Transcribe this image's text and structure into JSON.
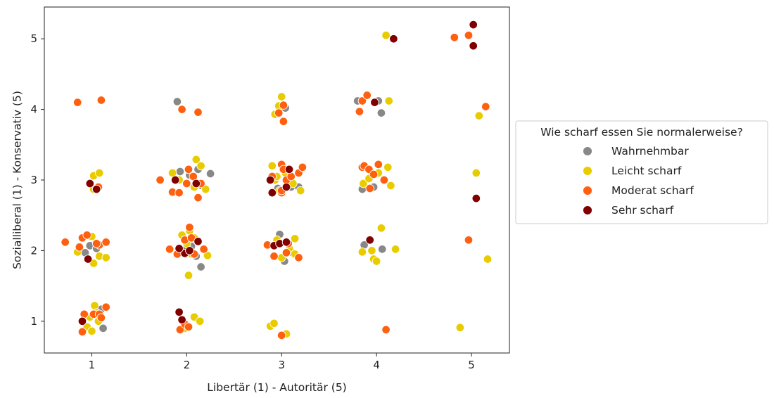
{
  "chart_data": {
    "type": "scatter",
    "xlabel": "Libertär (1) - Autoritär (5)",
    "ylabel": "Sozialliberal (1) - Konservativ (5)",
    "xlim": [
      0.5,
      5.4
    ],
    "ylim": [
      0.55,
      5.45
    ],
    "x_ticks": [
      "1",
      "2",
      "3",
      "4",
      "5"
    ],
    "y_ticks": [
      "1",
      "2",
      "3",
      "4",
      "5"
    ],
    "grid": false,
    "legend": {
      "title": "Wie scharf essen Sie normalerweise?",
      "placement": "right-outside",
      "entries": [
        "Wahrnehmbar",
        "Leicht scharf",
        "Moderat scharf",
        "Sehr scharf"
      ]
    },
    "series": [
      {
        "name": "Wahrnehmbar",
        "color": "#888888",
        "points": [
          [
            0.93,
            1.97
          ],
          [
            0.98,
            2.07
          ],
          [
            1.05,
            2.03
          ],
          [
            1.1,
            1.17
          ],
          [
            1.12,
            0.9
          ],
          [
            1.9,
            4.11
          ],
          [
            1.93,
            3.12
          ],
          [
            2.03,
            3.07
          ],
          [
            1.98,
            2.01
          ],
          [
            2.05,
            2.06
          ],
          [
            2.12,
            3.15
          ],
          [
            2.16,
            2.92
          ],
          [
            2.25,
            3.09
          ],
          [
            2.15,
            1.77
          ],
          [
            2.1,
            1.92
          ],
          [
            2.96,
            2.88
          ],
          [
            3.1,
            2.9
          ],
          [
            3.04,
            4.02
          ],
          [
            2.98,
            2.23
          ],
          [
            3.03,
            1.85
          ],
          [
            3.1,
            1.98
          ],
          [
            3.18,
            2.9
          ],
          [
            3.8,
            4.12
          ],
          [
            3.85,
            2.87
          ],
          [
            3.87,
            2.08
          ],
          [
            3.97,
            2.9
          ],
          [
            4.02,
            4.12
          ],
          [
            4.05,
            3.95
          ],
          [
            4.06,
            2.02
          ]
        ]
      },
      {
        "name": "Leicht scharf",
        "color": "#e8cc00",
        "points": [
          [
            0.85,
            1.98
          ],
          [
            1.02,
            3.06
          ],
          [
            1.08,
            3.1
          ],
          [
            1.02,
            2.87
          ],
          [
            1.0,
            2.2
          ],
          [
            1.02,
            1.82
          ],
          [
            1.08,
            1.92
          ],
          [
            1.15,
            1.9
          ],
          [
            0.9,
            1.0
          ],
          [
            0.95,
            0.92
          ],
          [
            1.0,
            0.86
          ],
          [
            1.03,
            1.22
          ],
          [
            1.07,
            1.0
          ],
          [
            1.05,
            1.12
          ],
          [
            0.98,
            1.06
          ],
          [
            1.85,
            3.1
          ],
          [
            1.92,
            3.0
          ],
          [
            2.08,
            2.9
          ],
          [
            2.1,
            3.29
          ],
          [
            2.15,
            3.2
          ],
          [
            2.2,
            2.87
          ],
          [
            1.95,
            2.22
          ],
          [
            2.0,
            2.1
          ],
          [
            2.05,
            1.95
          ],
          [
            2.08,
            2.18
          ],
          [
            2.03,
            2.28
          ],
          [
            2.22,
            1.93
          ],
          [
            2.02,
            1.65
          ],
          [
            2.08,
            1.06
          ],
          [
            2.14,
            1.0
          ],
          [
            1.98,
            0.9
          ],
          [
            2.9,
            3.2
          ],
          [
            2.93,
            3.0
          ],
          [
            2.98,
            2.85
          ],
          [
            3.04,
            3.1
          ],
          [
            3.12,
            2.95
          ],
          [
            3.2,
            2.85
          ],
          [
            2.95,
            3.05
          ],
          [
            2.93,
            3.93
          ],
          [
            2.97,
            4.05
          ],
          [
            3.0,
            4.18
          ],
          [
            2.95,
            2.15
          ],
          [
            3.08,
            2.03
          ],
          [
            3.14,
            1.95
          ],
          [
            3.14,
            2.17
          ],
          [
            3.0,
            1.9
          ],
          [
            2.88,
            0.93
          ],
          [
            2.92,
            0.97
          ],
          [
            3.05,
            0.82
          ],
          [
            3.86,
            2.95
          ],
          [
            3.92,
            3.02
          ],
          [
            4.02,
            3.1
          ],
          [
            4.12,
            3.18
          ],
          [
            4.15,
            2.92
          ],
          [
            3.85,
            1.98
          ],
          [
            3.95,
            2.0
          ],
          [
            3.97,
            1.88
          ],
          [
            4.0,
            1.85
          ],
          [
            4.05,
            2.32
          ],
          [
            4.2,
            2.02
          ],
          [
            4.1,
            5.05
          ],
          [
            4.13,
            4.12
          ],
          [
            4.88,
            0.91
          ],
          [
            5.05,
            3.1
          ],
          [
            5.08,
            3.91
          ],
          [
            5.17,
            1.88
          ]
        ]
      },
      {
        "name": "Moderat scharf",
        "color": "#ff6010",
        "points": [
          [
            0.85,
            4.1
          ],
          [
            1.1,
            4.13
          ],
          [
            0.72,
            2.12
          ],
          [
            0.87,
            2.05
          ],
          [
            0.9,
            2.18
          ],
          [
            0.95,
            2.22
          ],
          [
            1.08,
            2.08
          ],
          [
            1.15,
            2.12
          ],
          [
            1.05,
            2.1
          ],
          [
            1.07,
            2.9
          ],
          [
            0.92,
            1.1
          ],
          [
            1.02,
            1.1
          ],
          [
            1.08,
            1.1
          ],
          [
            1.1,
            1.05
          ],
          [
            1.15,
            1.2
          ],
          [
            0.9,
            0.85
          ],
          [
            1.95,
            4.0
          ],
          [
            2.12,
            3.96
          ],
          [
            1.72,
            3.0
          ],
          [
            1.85,
            2.83
          ],
          [
            1.92,
            2.82
          ],
          [
            2.0,
            2.95
          ],
          [
            2.02,
            3.15
          ],
          [
            2.07,
            3.05
          ],
          [
            2.12,
            2.75
          ],
          [
            2.15,
            2.95
          ],
          [
            1.82,
            2.02
          ],
          [
            1.9,
            1.95
          ],
          [
            1.98,
            2.15
          ],
          [
            2.03,
            2.33
          ],
          [
            2.05,
            2.18
          ],
          [
            2.08,
            1.95
          ],
          [
            2.18,
            2.02
          ],
          [
            1.93,
            0.88
          ],
          [
            1.98,
            0.96
          ],
          [
            2.02,
            0.92
          ],
          [
            2.9,
            3.05
          ],
          [
            3.0,
            3.22
          ],
          [
            3.02,
            3.15
          ],
          [
            3.05,
            3.0
          ],
          [
            3.1,
            3.05
          ],
          [
            3.18,
            3.1
          ],
          [
            3.22,
            3.18
          ],
          [
            3.0,
            2.82
          ],
          [
            3.0,
            2.85
          ],
          [
            2.97,
            3.95
          ],
          [
            3.02,
            3.83
          ],
          [
            3.02,
            4.06
          ],
          [
            2.85,
            2.08
          ],
          [
            2.92,
            1.92
          ],
          [
            3.07,
            2.1
          ],
          [
            3.05,
            1.97
          ],
          [
            3.18,
            1.9
          ],
          [
            3.0,
            0.8
          ],
          [
            3.82,
            3.97
          ],
          [
            3.85,
            4.12
          ],
          [
            3.9,
            4.2
          ],
          [
            3.85,
            3.18
          ],
          [
            3.87,
            3.2
          ],
          [
            3.92,
            3.15
          ],
          [
            3.97,
            3.08
          ],
          [
            4.08,
            3.0
          ],
          [
            4.02,
            3.22
          ],
          [
            3.93,
            2.88
          ],
          [
            4.1,
            0.88
          ],
          [
            4.82,
            5.02
          ],
          [
            4.97,
            5.05
          ],
          [
            5.15,
            4.04
          ],
          [
            4.97,
            2.15
          ]
        ]
      },
      {
        "name": "Sehr scharf",
        "color": "#800000",
        "points": [
          [
            0.98,
            2.95
          ],
          [
            1.05,
            2.87
          ],
          [
            0.96,
            1.88
          ],
          [
            0.9,
            1.0
          ],
          [
            1.88,
            3.0
          ],
          [
            2.1,
            2.95
          ],
          [
            1.98,
            1.96
          ],
          [
            2.03,
            2.0
          ],
          [
            1.92,
            2.03
          ],
          [
            2.12,
            2.13
          ],
          [
            1.92,
            1.13
          ],
          [
            1.95,
            1.02
          ],
          [
            2.88,
            3.0
          ],
          [
            2.9,
            2.82
          ],
          [
            3.05,
            2.9
          ],
          [
            3.08,
            3.15
          ],
          [
            2.92,
            2.07
          ],
          [
            2.98,
            2.1
          ],
          [
            3.05,
            2.12
          ],
          [
            4.18,
            5.0
          ],
          [
            3.98,
            4.1
          ],
          [
            3.93,
            2.15
          ],
          [
            5.02,
            5.2
          ],
          [
            5.02,
            4.9
          ],
          [
            5.05,
            2.74
          ]
        ]
      }
    ]
  }
}
